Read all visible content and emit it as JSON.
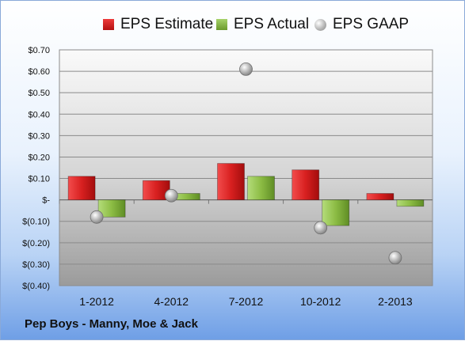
{
  "chart_data": {
    "type": "bar",
    "title": "",
    "xlabel": "",
    "ylabel": "",
    "categories": [
      "1-2012",
      "4-2012",
      "7-2012",
      "10-2012",
      "2-2013"
    ],
    "series": [
      {
        "name": "EPS Estimate",
        "kind": "bar",
        "values": [
          0.11,
          0.09,
          0.17,
          0.14,
          0.03
        ]
      },
      {
        "name": "EPS Actual",
        "kind": "bar",
        "values": [
          -0.08,
          0.03,
          0.11,
          -0.12,
          -0.03
        ]
      },
      {
        "name": "EPS GAAP",
        "kind": "scatter",
        "values": [
          -0.08,
          0.02,
          0.61,
          -0.13,
          -0.27
        ]
      }
    ],
    "ylim": [
      -0.4,
      0.7
    ],
    "yticks": [
      0.7,
      0.6,
      0.5,
      0.4,
      0.3,
      0.2,
      0.1,
      0,
      -0.1,
      -0.2,
      -0.3,
      -0.4
    ],
    "ytick_labels": [
      "$0.70",
      "$0.60",
      "$0.50",
      "$0.40",
      "$0.30",
      "$0.20",
      "$0.10",
      "$-",
      "$(0.10)",
      "$(0.20)",
      "$(0.30)",
      "$(0.40)"
    ],
    "grid": true,
    "legend_position": "top"
  },
  "legend": {
    "estimate": "EPS Estimate",
    "actual": "EPS Actual",
    "gaap": "EPS GAAP"
  },
  "colors": {
    "estimate": "#d42020",
    "actual": "#8fbf45",
    "gaap": "#b5b5b5"
  },
  "footer": {
    "company": "Pep Boys - Manny, Moe & Jack"
  }
}
